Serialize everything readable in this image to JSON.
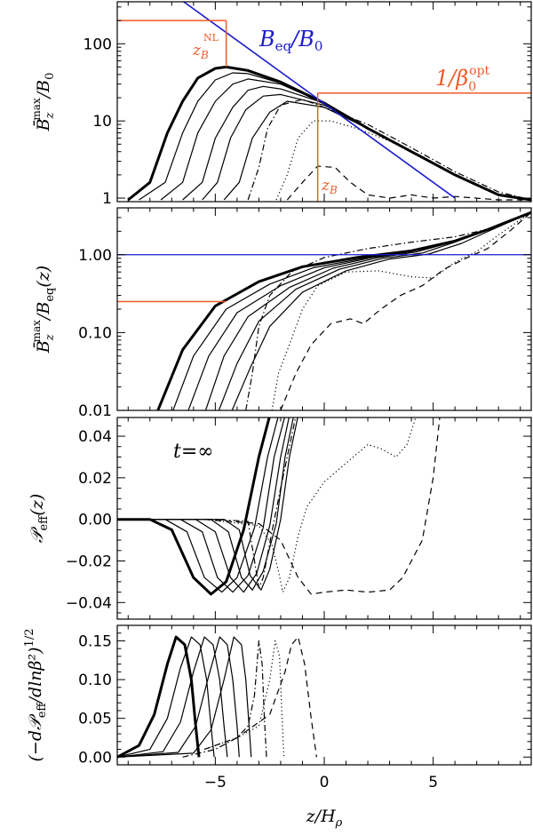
{
  "figure": {
    "xlabel": "z/H_ρ",
    "xlim": [
      -9.5,
      9.5
    ],
    "xticks": [
      -5,
      0,
      5
    ],
    "x_tick_labels": [
      "−5",
      "0",
      "5"
    ]
  },
  "colors": {
    "curves": "#000000",
    "equipartition": "#1a1ad0",
    "markers": "#f05a28"
  },
  "chart_data": [
    {
      "type": "line",
      "ylabel": "B̄_z^max / B_0",
      "ylim": [
        0.9,
        350
      ],
      "yscale": "log",
      "yticks": [
        1,
        10,
        100
      ],
      "y_tick_labels": [
        "1",
        "10",
        "100"
      ],
      "series": [
        {
          "style": "bold",
          "x": [
            -9.0,
            -8.0,
            -7.2,
            -6.5,
            -5.8,
            -5.0,
            -4.5,
            -3.5,
            -2.0,
            0,
            2,
            4,
            6,
            8,
            9.5
          ],
          "y": [
            0.95,
            1.6,
            7,
            18,
            36,
            48,
            50,
            45,
            32,
            17,
            8,
            4,
            2,
            1.1,
            0.95
          ]
        },
        {
          "style": "thin",
          "x": [
            -8.5,
            -7.3,
            -6.5,
            -5.8,
            -5.0,
            -4.2,
            -3.5,
            -2.0,
            0,
            2,
            4,
            6,
            8,
            9.5
          ],
          "y": [
            0.95,
            1.6,
            7,
            18,
            34,
            42,
            41,
            31,
            17,
            8,
            4,
            2,
            1.1,
            0.95
          ]
        },
        {
          "style": "thin",
          "x": [
            -7.5,
            -6.5,
            -5.8,
            -5.0,
            -4.2,
            -3.5,
            -2.0,
            0,
            2,
            4,
            6,
            8,
            9.5
          ],
          "y": [
            0.95,
            1.6,
            7,
            18,
            30,
            35,
            30,
            17,
            8,
            4,
            2,
            1.1,
            0.95
          ]
        },
        {
          "style": "thin",
          "x": [
            -6.5,
            -5.6,
            -5.0,
            -4.2,
            -3.5,
            -2.8,
            -2.0,
            0,
            2,
            4,
            6,
            8,
            9.5
          ],
          "y": [
            0.95,
            1.6,
            6,
            15,
            25,
            28,
            26,
            17,
            8,
            4,
            2,
            1.1,
            0.95
          ]
        },
        {
          "style": "thin",
          "x": [
            -5.6,
            -4.9,
            -4.3,
            -3.6,
            -2.8,
            -2.0,
            0,
            2,
            4,
            6,
            8,
            9.5
          ],
          "y": [
            0.95,
            1.6,
            6,
            14,
            21,
            22,
            16,
            8,
            4,
            2,
            1.1,
            0.95
          ]
        },
        {
          "style": "thin",
          "x": [
            -4.6,
            -3.9,
            -3.3,
            -2.5,
            -1.7,
            0,
            2,
            4,
            6,
            8,
            9.5
          ],
          "y": [
            0.95,
            1.6,
            6,
            13,
            18,
            15,
            8,
            4,
            2,
            1.1,
            0.95
          ]
        },
        {
          "style": "dashdot",
          "x": [
            -3.5,
            -3.0,
            -2.6,
            -2.0,
            -1.0,
            0,
            2,
            4,
            6,
            8,
            9.5
          ],
          "y": [
            0.95,
            2.5,
            8,
            16,
            19,
            15,
            9,
            4.5,
            2.2,
            1.2,
            0.95
          ]
        },
        {
          "style": "dotted",
          "x": [
            -2.2,
            -1.7,
            -1.2,
            -0.5,
            0.3,
            1.5,
            3,
            4.5,
            6,
            8,
            9.5
          ],
          "y": [
            0.95,
            2,
            6,
            10,
            10,
            8,
            5.5,
            3.5,
            2,
            1.1,
            0.95
          ]
        },
        {
          "style": "dashed",
          "x": [
            -1.7,
            -1.0,
            -0.3,
            0.5,
            1.2,
            2,
            3,
            4,
            5,
            6,
            8,
            9.5
          ],
          "y": [
            0.95,
            1.6,
            2.6,
            2.5,
            1.6,
            1.1,
            1.0,
            1.1,
            1.0,
            1.05,
            0.95,
            0.95
          ]
        }
      ],
      "equipartition_line": {
        "label": "B_eq/B_0",
        "x": [
          -6.45,
          6.0
        ],
        "y": [
          350,
          1.0
        ]
      },
      "markers": {
        "zB_NL": {
          "label": "z_B^NL",
          "x": -4.5,
          "y_top": 200,
          "y_bottom": 50
        },
        "beta_opt": {
          "label": "1/β_0^opt",
          "x": -0.3,
          "y": 23
        },
        "zB": {
          "label": "z_B",
          "x": -0.3,
          "y_bottom": 0.9
        }
      }
    },
    {
      "type": "line",
      "ylabel": "B̄_z^max / B_eq(z)",
      "ylim": [
        0.01,
        4
      ],
      "yscale": "log",
      "yticks": [
        0.01,
        0.1,
        1
      ],
      "y_tick_labels": [
        "0.01",
        "0.10",
        "1.00"
      ],
      "series": [
        {
          "style": "bold",
          "x": [
            -7.7,
            -6.5,
            -5.0,
            -3.0,
            -1.0,
            1.5,
            4,
            6,
            7.5,
            9.5
          ],
          "y": [
            0.009,
            0.06,
            0.22,
            0.45,
            0.7,
            0.92,
            1.12,
            1.5,
            2.1,
            3.5
          ]
        },
        {
          "style": "thin",
          "x": [
            -7.0,
            -6.0,
            -4.5,
            -2.5,
            -0.5,
            2,
            4,
            6,
            7.5,
            9.5
          ],
          "y": [
            0.009,
            0.05,
            0.2,
            0.42,
            0.68,
            0.92,
            1.1,
            1.5,
            2.1,
            3.5
          ]
        },
        {
          "style": "thin",
          "x": [
            -6.3,
            -5.3,
            -4.0,
            -2.0,
            0,
            2.2,
            4,
            6,
            7.5,
            9.5
          ],
          "y": [
            0.009,
            0.05,
            0.18,
            0.4,
            0.68,
            0.92,
            1.1,
            1.5,
            2.1,
            3.5
          ]
        },
        {
          "style": "thin",
          "x": [
            -5.5,
            -4.6,
            -3.5,
            -1.6,
            0.4,
            2.5,
            4.2,
            6,
            7.5,
            9.5
          ],
          "y": [
            0.009,
            0.05,
            0.16,
            0.38,
            0.67,
            0.92,
            1.08,
            1.48,
            2.1,
            3.5
          ]
        },
        {
          "style": "thin",
          "x": [
            -4.9,
            -4.0,
            -3.0,
            -1.3,
            0.7,
            2.7,
            4.5,
            6,
            7.5,
            9.5
          ],
          "y": [
            0.009,
            0.04,
            0.14,
            0.36,
            0.65,
            0.9,
            1.05,
            1.45,
            2.1,
            3.5
          ]
        },
        {
          "style": "thin",
          "x": [
            -4.3,
            -3.4,
            -2.5,
            -1.0,
            1.0,
            3,
            4.8,
            6.3,
            7.7,
            9.5
          ],
          "y": [
            0.009,
            0.035,
            0.12,
            0.33,
            0.62,
            0.88,
            1.02,
            1.4,
            2.1,
            3.5
          ]
        },
        {
          "style": "dashdot",
          "x": [
            -3.6,
            -3.3,
            -3.0,
            -2.5,
            -1.5,
            0,
            2,
            4,
            6,
            8,
            9.5
          ],
          "y": [
            0.01,
            0.03,
            0.12,
            0.3,
            0.6,
            0.92,
            1.2,
            1.45,
            1.7,
            2.3,
            3.5
          ]
        },
        {
          "style": "dotted",
          "x": [
            -2.4,
            -2.1,
            -1.6,
            -1.0,
            -0.3,
            1,
            2.5,
            4,
            5,
            6,
            7,
            8,
            9.5
          ],
          "y": [
            0.01,
            0.03,
            0.07,
            0.2,
            0.4,
            0.6,
            0.62,
            0.52,
            0.5,
            0.8,
            1.1,
            1.8,
            3.5
          ]
        },
        {
          "style": "dashed",
          "x": [
            -2.0,
            -1.3,
            -0.6,
            0.3,
            1.2,
            1.8,
            2.6,
            3.5,
            4.5,
            5.5,
            6.5,
            7.5,
            8.5,
            9.5
          ],
          "y": [
            0.01,
            0.03,
            0.07,
            0.13,
            0.15,
            0.13,
            0.2,
            0.3,
            0.4,
            0.65,
            0.9,
            1.2,
            2.0,
            3.5
          ]
        }
      ],
      "reference_line": {
        "y": 1.0
      },
      "markers": {
        "x_start": -9.5,
        "x_end": -4.5,
        "y": 0.25
      }
    },
    {
      "type": "line",
      "ylabel": "𝒫_eff(z)",
      "ylim": [
        -0.048,
        0.049
      ],
      "yscale": "linear",
      "yticks": [
        -0.04,
        -0.02,
        0.0,
        0.02,
        0.04
      ],
      "y_tick_labels": [
        "−0.04",
        "−0.02",
        "0.00",
        "0.02",
        "0.04"
      ],
      "annotation": "t=∞",
      "series": [
        {
          "style": "bold",
          "x": [
            -9.5,
            -8.0,
            -7.0,
            -6.0,
            -5.2,
            -4.5,
            -3.7,
            -3.0,
            -2.5
          ],
          "y": [
            0,
            0,
            -0.005,
            -0.028,
            -0.036,
            -0.03,
            -0.005,
            0.03,
            0.05
          ]
        },
        {
          "style": "thin",
          "x": [
            -9.5,
            -7.3,
            -6.3,
            -5.5,
            -4.7,
            -4.0,
            -3.2,
            -2.6,
            -2.1
          ],
          "y": [
            0,
            0,
            -0.006,
            -0.028,
            -0.035,
            -0.028,
            -0.004,
            0.03,
            0.05
          ]
        },
        {
          "style": "thin",
          "x": [
            -9.5,
            -6.6,
            -5.6,
            -4.9,
            -4.2,
            -3.5,
            -2.8,
            -2.3,
            -1.8
          ],
          "y": [
            0,
            0,
            -0.006,
            -0.028,
            -0.035,
            -0.027,
            -0.004,
            0.03,
            0.05
          ]
        },
        {
          "style": "thin",
          "x": [
            -9.5,
            -5.9,
            -5.0,
            -4.3,
            -3.7,
            -3.1,
            -2.5,
            -2.0,
            -1.6
          ],
          "y": [
            0,
            0,
            -0.006,
            -0.028,
            -0.035,
            -0.026,
            -0.003,
            0.03,
            0.05
          ]
        },
        {
          "style": "thin",
          "x": [
            -9.5,
            -5.2,
            -4.4,
            -3.8,
            -3.3,
            -2.8,
            -2.2,
            -1.8,
            -1.4
          ],
          "y": [
            0,
            0,
            -0.006,
            -0.028,
            -0.034,
            -0.025,
            -0.002,
            0.03,
            0.05
          ]
        },
        {
          "style": "thin",
          "x": [
            -9.5,
            -4.6,
            -3.9,
            -3.4,
            -2.9,
            -2.5,
            -2.0,
            -1.6,
            -1.2
          ],
          "y": [
            0,
            0,
            -0.005,
            -0.027,
            -0.034,
            -0.024,
            0.0,
            0.03,
            0.05
          ]
        },
        {
          "style": "dashdot",
          "x": [
            -9.5,
            -5.0,
            -3.5,
            -3.2,
            -3.0,
            -2.8,
            -2.4,
            -2.0,
            -1.6,
            -1.3
          ],
          "y": [
            0,
            0,
            -0.001,
            -0.02,
            -0.033,
            -0.028,
            -0.006,
            0.015,
            0.035,
            0.05
          ]
        },
        {
          "style": "dotted",
          "x": [
            -5.5,
            -3.0,
            -2.4,
            -2.1,
            -1.9,
            -1.6,
            -1.2,
            -0.8,
            0,
            1,
            2,
            2.6,
            3.3,
            3.8,
            4.2
          ],
          "y": [
            0,
            -0.003,
            -0.012,
            -0.025,
            -0.035,
            -0.028,
            -0.008,
            0.006,
            0.018,
            0.027,
            0.036,
            0.034,
            0.03,
            0.036,
            0.049
          ]
        },
        {
          "style": "dashed",
          "x": [
            -5.5,
            -3.0,
            -2.0,
            -1.2,
            -0.6,
            0,
            1,
            2,
            3,
            3.6,
            4,
            4.5,
            5.0,
            5.3
          ],
          "y": [
            0,
            -0.002,
            -0.01,
            -0.028,
            -0.036,
            -0.035,
            -0.034,
            -0.035,
            -0.034,
            -0.028,
            -0.02,
            -0.01,
            0.02,
            0.049
          ]
        }
      ]
    },
    {
      "type": "line",
      "ylabel": "(−d𝒫_eff/dlnβ²)^1/2",
      "ylim": [
        -0.01,
        0.17
      ],
      "yscale": "linear",
      "yticks": [
        0.0,
        0.05,
        0.1,
        0.15
      ],
      "y_tick_labels": [
        "0.00",
        "0.05",
        "0.10",
        "0.15"
      ],
      "series": [
        {
          "style": "bold",
          "x": [
            -9.5,
            -8.5,
            -7.8,
            -7.2,
            -6.8,
            -6.4,
            -6.1,
            -5.9,
            -5.75
          ],
          "y": [
            0,
            0.015,
            0.055,
            0.12,
            0.155,
            0.145,
            0.1,
            0.04,
            0
          ]
        },
        {
          "style": "thin",
          "x": [
            -9.5,
            -8.0,
            -7.2,
            -6.6,
            -6.1,
            -5.7,
            -5.4,
            -5.2,
            -5.05
          ],
          "y": [
            0,
            0.01,
            0.05,
            0.115,
            0.155,
            0.145,
            0.1,
            0.04,
            0
          ]
        },
        {
          "style": "thin",
          "x": [
            -9.5,
            -7.4,
            -6.6,
            -6.0,
            -5.5,
            -5.1,
            -4.8,
            -4.6,
            -4.45
          ],
          "y": [
            0,
            0.007,
            0.045,
            0.11,
            0.155,
            0.145,
            0.1,
            0.04,
            0
          ]
        },
        {
          "style": "thin",
          "x": [
            -9.5,
            -6.7,
            -5.9,
            -5.3,
            -4.8,
            -4.45,
            -4.2,
            -4.0,
            -3.9
          ],
          "y": [
            0,
            0.006,
            0.04,
            0.105,
            0.155,
            0.145,
            0.1,
            0.04,
            0
          ]
        },
        {
          "style": "thin",
          "x": [
            -9.5,
            -6.0,
            -5.2,
            -4.6,
            -4.15,
            -3.8,
            -3.6,
            -3.45,
            -3.35
          ],
          "y": [
            0,
            0.005,
            0.035,
            0.1,
            0.155,
            0.145,
            0.1,
            0.04,
            0
          ]
        },
        {
          "style": "dashdot",
          "x": [
            -6.5,
            -5.0,
            -4.0,
            -3.5,
            -3.2,
            -3.0,
            -2.85,
            -2.75,
            -2.65
          ],
          "y": [
            0,
            0.01,
            0.025,
            0.04,
            0.08,
            0.15,
            0.12,
            0.05,
            0
          ]
        },
        {
          "style": "dotted",
          "x": [
            -5.5,
            -4.0,
            -3.0,
            -2.5,
            -2.25,
            -2.05,
            -1.95,
            -1.85
          ],
          "y": [
            0.01,
            0.025,
            0.04,
            0.1,
            0.15,
            0.13,
            0.06,
            0
          ]
        },
        {
          "style": "dashed",
          "x": [
            -5.5,
            -4.0,
            -2.5,
            -1.8,
            -1.5,
            -1.2,
            -0.9,
            -0.6,
            -0.35
          ],
          "y": [
            0.01,
            0.025,
            0.055,
            0.11,
            0.145,
            0.155,
            0.12,
            0.05,
            0
          ]
        }
      ]
    }
  ]
}
